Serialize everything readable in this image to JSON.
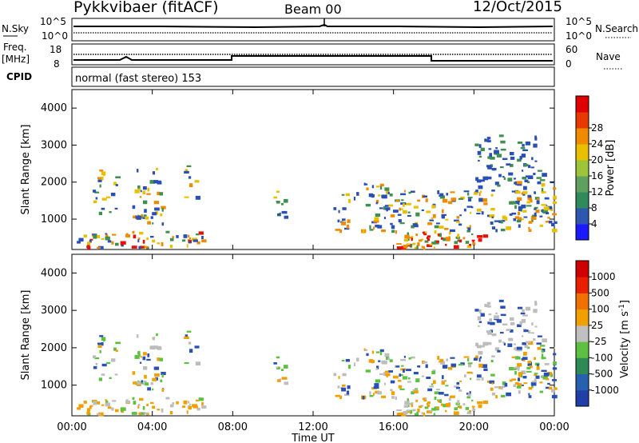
{
  "header": {
    "title": "Pykkvibaer (fitACF)",
    "beam": "Beam 00",
    "date": "12/Oct/2015"
  },
  "top_panel": {
    "left_label": "N.Sky",
    "right_label": "N.Search",
    "left_ticks": [
      "10^5",
      "10^0"
    ],
    "right_ticks": [
      "10^5",
      "10^0"
    ]
  },
  "freq_panel": {
    "left_label_1": "Freq.",
    "left_label_2": "[MHz]",
    "right_label": "Nave",
    "left_ticks": [
      "18",
      "8"
    ],
    "right_ticks": [
      "60",
      "0"
    ]
  },
  "cpid_panel": {
    "label": "CPID",
    "text": "normal (fast stereo) 153"
  },
  "chart_data": [
    {
      "type": "heatmap",
      "ylabel": "Slant Range [km]",
      "y_ticks": [
        "1000",
        "2000",
        "3000",
        "4000"
      ],
      "y_tick_values": [
        1000,
        2000,
        3000,
        4000
      ],
      "ylim": [
        180,
        4500
      ],
      "x_ticks": [
        "00:00",
        "04:00",
        "08:00",
        "12:00",
        "16:00",
        "20:00",
        "00:00"
      ],
      "colorbar": {
        "label": "Power [dB]",
        "ticks": [
          "4",
          "8",
          "12",
          "16",
          "20",
          "24",
          "28"
        ],
        "colors": [
          "#1a1aff",
          "#2e58b0",
          "#2f8a5c",
          "#5fa05f",
          "#9dc53a",
          "#e8c000",
          "#f08a00",
          "#e83a00",
          "#e00000"
        ]
      }
    },
    {
      "type": "heatmap",
      "ylabel": "Slant Range [km]",
      "y_ticks": [
        "1000",
        "2000",
        "3000",
        "4000"
      ],
      "y_tick_values": [
        1000,
        2000,
        3000,
        4000
      ],
      "ylim": [
        180,
        4500
      ],
      "x_ticks": [
        "00:00",
        "04:00",
        "08:00",
        "12:00",
        "16:00",
        "20:00",
        "00:00"
      ],
      "xlabel": "Time UT",
      "colorbar": {
        "label": "Velocity [m s^-1]",
        "ticks": [
          "1000",
          "500",
          "100",
          "25",
          "-25",
          "-100",
          "-500",
          "-1000"
        ],
        "colors": [
          "#1f3ea8",
          "#2860b0",
          "#2e8a55",
          "#5cc040",
          "#c0c0c0",
          "#f0a000",
          "#f07000",
          "#e82000",
          "#d00000"
        ]
      }
    }
  ],
  "colors": {
    "power_blue": "#2a4fb5",
    "power_green": "#3f9050",
    "power_yellow": "#e8c000",
    "power_orange": "#f08a00",
    "power_red": "#e81000",
    "vel_grey": "#bdbdbd",
    "vel_orange": "#f0a000",
    "vel_green": "#5cc040",
    "vel_blue": "#2a4fb5"
  }
}
